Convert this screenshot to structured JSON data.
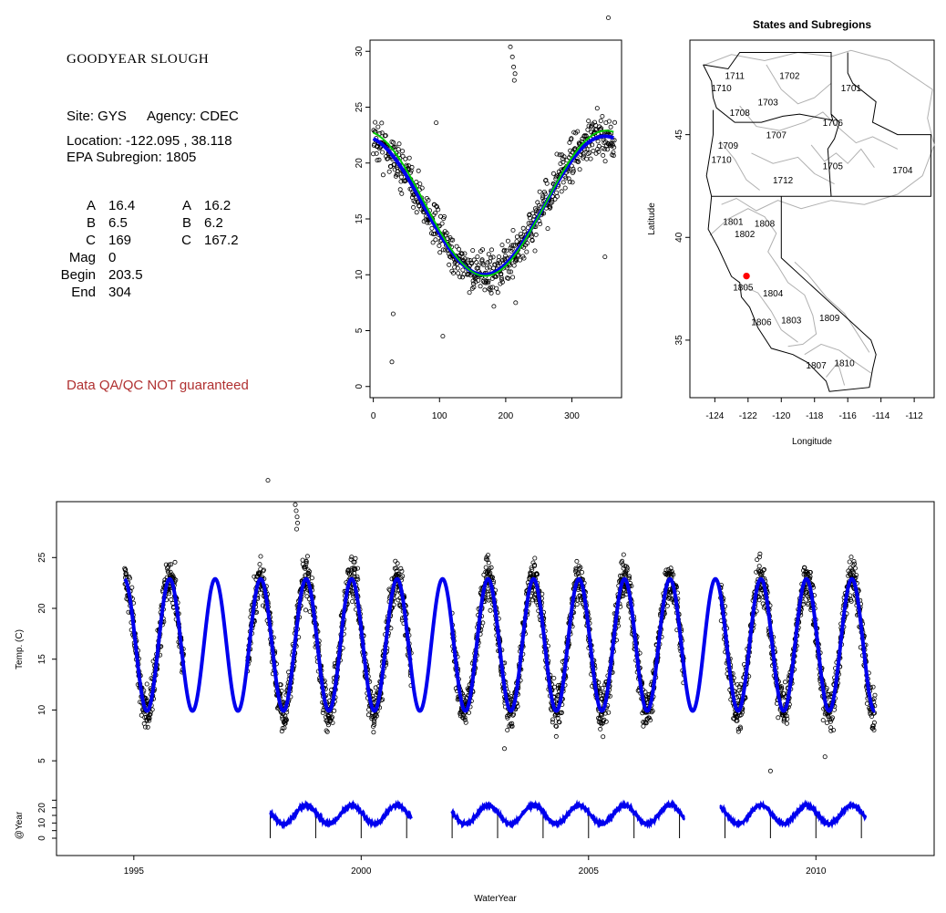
{
  "site": {
    "name": "GOODYEAR SLOUGH",
    "site_line": "Site: GYS",
    "agency_line": "Agency: CDEC",
    "location_line": "Location: -122.095 , 38.118",
    "subregion_line": "EPA Subregion: 1805",
    "params_left": [
      {
        "label": "A",
        "value": "16.4"
      },
      {
        "label": "B",
        "value": "6.5"
      },
      {
        "label": "C",
        "value": "169"
      },
      {
        "label": "Mag",
        "value": "0"
      },
      {
        "label": "Begin",
        "value": "203.5"
      },
      {
        "label": "End",
        "value": "304"
      }
    ],
    "params_right": [
      {
        "label": "A",
        "value": "16.2"
      },
      {
        "label": "B",
        "value": "6.2"
      },
      {
        "label": "C",
        "value": "167.2"
      }
    ],
    "qa_note": "Data QA/QC NOT guaranteed",
    "qa_color": "#b03030"
  },
  "chart_data": [
    {
      "type": "scatter",
      "title": "",
      "xlabel": "",
      "ylabel": "",
      "xlim": [
        -5,
        375
      ],
      "ylim": [
        -1,
        31
      ],
      "xticks": [
        "0",
        "100",
        "200",
        "300"
      ],
      "yticks": [
        "0",
        "5",
        "10",
        "15",
        "20",
        "25",
        "30"
      ],
      "series": [
        {
          "kind": "points",
          "description_values": "daily temperatures by day of water year"
        },
        {
          "kind": "fit",
          "A": 16.4,
          "B": 6.5,
          "C": 169,
          "color": "#00cc00"
        },
        {
          "kind": "fit",
          "A": 16.2,
          "B": 6.2,
          "C": 167.2,
          "color": "#0000ee"
        }
      ]
    },
    {
      "type": "map",
      "title": "States and Subregions",
      "xlabel": "Longitude",
      "ylabel": "Latitude",
      "xlim": [
        -125.5,
        -110.8
      ],
      "ylim": [
        32.2,
        49.6
      ],
      "xticks": [
        "-124",
        "-122",
        "-120",
        "-118",
        "-116",
        "-114",
        "-112"
      ],
      "yticks": [
        "35",
        "40",
        "45"
      ],
      "region_labels": [
        {
          "label": "1711",
          "lon": -122.8,
          "lat": 47.9
        },
        {
          "label": "1710",
          "lon": -123.6,
          "lat": 47.3
        },
        {
          "label": "1702",
          "lon": -119.5,
          "lat": 47.9
        },
        {
          "label": "1701",
          "lon": -115.8,
          "lat": 47.3
        },
        {
          "label": "1703",
          "lon": -120.8,
          "lat": 46.6
        },
        {
          "label": "1708",
          "lon": -122.5,
          "lat": 46.1
        },
        {
          "label": "1706",
          "lon": -116.9,
          "lat": 45.6
        },
        {
          "label": "1707",
          "lon": -120.3,
          "lat": 45.0
        },
        {
          "label": "1709",
          "lon": -123.2,
          "lat": 44.5
        },
        {
          "label": "1710",
          "lon": -123.6,
          "lat": 43.8
        },
        {
          "label": "1705",
          "lon": -116.9,
          "lat": 43.5
        },
        {
          "label": "1704",
          "lon": -112.7,
          "lat": 43.3
        },
        {
          "label": "1712",
          "lon": -119.9,
          "lat": 42.8
        },
        {
          "label": "1801",
          "lon": -122.9,
          "lat": 40.8
        },
        {
          "label": "1808",
          "lon": -121.0,
          "lat": 40.7
        },
        {
          "label": "1802",
          "lon": -122.2,
          "lat": 40.2
        },
        {
          "label": "1805",
          "lon": -122.3,
          "lat": 37.6
        },
        {
          "label": "1804",
          "lon": -120.5,
          "lat": 37.3
        },
        {
          "label": "1806",
          "lon": -121.2,
          "lat": 35.9
        },
        {
          "label": "1803",
          "lon": -119.4,
          "lat": 36.0
        },
        {
          "label": "1809",
          "lon": -117.1,
          "lat": 36.1
        },
        {
          "label": "1807",
          "lon": -117.9,
          "lat": 33.8
        },
        {
          "label": "1810",
          "lon": -116.2,
          "lat": 33.9
        }
      ],
      "site_marker": {
        "lon": -122.095,
        "lat": 38.118,
        "color": "#ff0000"
      }
    },
    {
      "type": "scatter",
      "title": "",
      "xlabel": "WaterYear",
      "ylabel": "Temp. (C)",
      "xlim": [
        1993.3,
        2012.6
      ],
      "ylim": [
        2.5,
        30.5
      ],
      "xticks": [
        "1995",
        "2000",
        "2005",
        "2010"
      ],
      "yticks": [
        "5",
        "10",
        "15",
        "20",
        "25"
      ],
      "fit": {
        "A": 16.4,
        "B": 6.5,
        "peak_year_fraction": 0.79,
        "color": "#0000ee",
        "start": 1994.8,
        "end": 2011.3
      },
      "point_ranges": [
        [
          1994.8,
          1996.1
        ],
        [
          1997.5,
          2001.1
        ],
        [
          2002.0,
          2007.1
        ],
        [
          2007.9,
          2011.3
        ]
      ]
    },
    {
      "type": "line",
      "title": "",
      "xlabel": "",
      "ylabel": "@Year",
      "ylim": [
        -3,
        27
      ],
      "yticks": [
        "0",
        "10",
        "20"
      ],
      "ytick_values": [
        0,
        5,
        10,
        15,
        20,
        25
      ],
      "segments": [
        [
          1998.0,
          2001.1
        ],
        [
          2002.0,
          2007.1
        ],
        [
          2007.9,
          2011.1
        ]
      ],
      "year_marks": [
        1998,
        1999,
        2000,
        2001,
        2002,
        2003,
        2004,
        2005,
        2006,
        2007,
        2008,
        2009,
        2010,
        2011
      ],
      "color": "#0000ee"
    }
  ]
}
